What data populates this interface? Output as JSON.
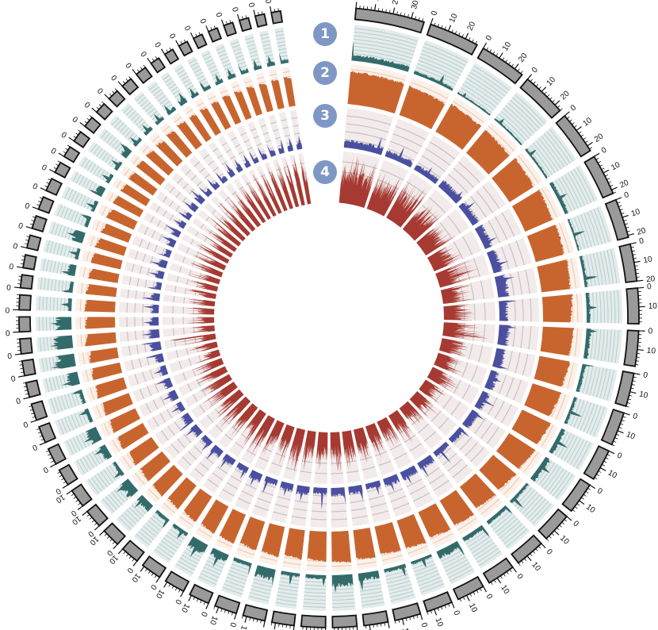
{
  "track_badges": [
    "1",
    "2",
    "3",
    "4"
  ],
  "colors": {
    "ideogram_fill": "#9a9a9a",
    "ideogram_stroke": "#111111",
    "track1_fill": "#336b6a",
    "track1_bg": "#e3ecec",
    "track1_line": "#b9cccc",
    "track2_fill": "#c8652f",
    "track2_bg": "#fcf0e8",
    "track2_line": "#e6c9b8",
    "track3_fill": "#4a4fa0",
    "track3_bg": "#f3ebeb",
    "track3_line": "#c6c3c3",
    "track4_fill": "#a63a32",
    "track4_bg": "#f3ebeb",
    "track4_line": "#c6c3c3",
    "badge": "#7f97c4"
  },
  "chart_data": {
    "type": "circos",
    "tick_label_interval": 10,
    "minor_tick_interval": 2,
    "segment_lengths": [
      37,
      27,
      25,
      24,
      23,
      22,
      21,
      20,
      19,
      19,
      18,
      18,
      17,
      17,
      16,
      16,
      15,
      15,
      14,
      14,
      13,
      13,
      13,
      12,
      12,
      12,
      11,
      11,
      11,
      10,
      10,
      10,
      10,
      9,
      9,
      9,
      9,
      8,
      8,
      8,
      8,
      8,
      7,
      7,
      7,
      7,
      7,
      7,
      6,
      6,
      6,
      6,
      6,
      6,
      6,
      6,
      5,
      5,
      5,
      5,
      5,
      5,
      5,
      5,
      5
    ],
    "tracks": [
      {
        "id": "1",
        "type": "area",
        "level": [
          0.15,
          0.08,
          0.05,
          0.05,
          0.06,
          0.1,
          0.05,
          0.08,
          0.1,
          0.12,
          0.1,
          0.08,
          0.12,
          0.15,
          0.08,
          0.1,
          0.12,
          0.2,
          0.08,
          0.1,
          0.2,
          0.3,
          0.1,
          0.1,
          0.3,
          0.1,
          0.2,
          0.3,
          0.1,
          0.1,
          0.2,
          0.3,
          0.1,
          0.2,
          0.3,
          0.1,
          0.1,
          0.3,
          0.5,
          0.45,
          0.4,
          0.1,
          0.1,
          0.2,
          0.1,
          0.3,
          0.1,
          0.1,
          0.2,
          0.1,
          0.1,
          0.2,
          0.1,
          0.1,
          0.1,
          0.1,
          0.15,
          0.1,
          0.1,
          0.1,
          0.1,
          0.1,
          0.1,
          0.1,
          0.1
        ],
        "peak": [
          0.55,
          0.3,
          0.15,
          0.2,
          0.25,
          0.3,
          0.35,
          0.4,
          0.3,
          0.3,
          0.35,
          0.4,
          0.4,
          0.35,
          0.4,
          0.3,
          0.4,
          0.45,
          0.3,
          0.35,
          0.5,
          0.5,
          0.3,
          0.35,
          0.5,
          0.35,
          0.5,
          0.55,
          0.3,
          0.3,
          0.4,
          0.5,
          0.3,
          0.4,
          0.5,
          0.3,
          0.3,
          0.5,
          0.7,
          0.65,
          0.6,
          0.3,
          0.3,
          0.4,
          0.3,
          0.5,
          0.3,
          0.3,
          0.4,
          0.3,
          0.3,
          0.4,
          0.3,
          0.3,
          0.3,
          0.3,
          0.35,
          0.3,
          0.3,
          0.3,
          0.3,
          0.3,
          0.3,
          0.3,
          0.3
        ]
      },
      {
        "id": "2",
        "type": "area",
        "level": [
          0.78,
          0.72,
          0.75,
          0.7,
          0.72,
          0.75,
          0.74,
          0.72,
          0.7,
          0.73,
          0.72,
          0.7,
          0.74,
          0.72,
          0.7,
          0.68,
          0.72,
          0.7,
          0.73,
          0.7,
          0.72,
          0.74,
          0.7,
          0.68,
          0.72,
          0.7,
          0.74,
          0.72,
          0.7,
          0.7,
          0.72,
          0.7,
          0.68,
          0.72,
          0.7,
          0.7,
          0.72,
          0.7,
          0.68,
          0.72,
          0.7,
          0.72,
          0.7,
          0.7,
          0.72,
          0.7,
          0.68,
          0.7,
          0.72,
          0.7,
          0.7,
          0.72,
          0.7,
          0.68,
          0.7,
          0.72,
          0.7,
          0.7,
          0.7,
          0.72,
          0.7,
          0.7,
          0.68,
          0.7,
          0.7
        ],
        "peak": [
          0.82,
          0.78,
          0.8,
          0.76,
          0.78,
          0.8,
          0.78,
          0.78,
          0.76,
          0.78,
          0.78,
          0.76,
          0.8,
          0.78,
          0.76,
          0.74,
          0.78,
          0.76,
          0.78,
          0.76,
          0.78,
          0.8,
          0.76,
          0.74,
          0.78,
          0.76,
          0.8,
          0.78,
          0.76,
          0.76,
          0.78,
          0.76,
          0.74,
          0.78,
          0.76,
          0.76,
          0.78,
          0.76,
          0.74,
          0.78,
          0.76,
          0.78,
          0.76,
          0.76,
          0.78,
          0.76,
          0.74,
          0.76,
          0.78,
          0.76,
          0.76,
          0.78,
          0.76,
          0.74,
          0.76,
          0.78,
          0.76,
          0.76,
          0.76,
          0.78,
          0.76,
          0.76,
          0.74,
          0.76,
          0.76
        ]
      },
      {
        "id": "3",
        "type": "area",
        "level": [
          0.18,
          0.15,
          0.15,
          0.2,
          0.18,
          0.2,
          0.22,
          0.25,
          0.2,
          0.25,
          0.22,
          0.2,
          0.18,
          0.2,
          0.15,
          0.15,
          0.18,
          0.2,
          0.2,
          0.15,
          0.18,
          0.2,
          0.15,
          0.2,
          0.18,
          0.15,
          0.2,
          0.15,
          0.18,
          0.2,
          0.15,
          0.18,
          0.2,
          0.15,
          0.2,
          0.18,
          0.15,
          0.2,
          0.25,
          0.25,
          0.2,
          0.18,
          0.2,
          0.15,
          0.18,
          0.2,
          0.15,
          0.18,
          0.2,
          0.15,
          0.15,
          0.18,
          0.2,
          0.15,
          0.15,
          0.15,
          0.18,
          0.15,
          0.15,
          0.15,
          0.15,
          0.15,
          0.15,
          0.15,
          0.15
        ],
        "peak": [
          0.45,
          0.4,
          0.3,
          0.35,
          0.4,
          0.4,
          0.45,
          0.5,
          0.45,
          0.45,
          0.4,
          0.35,
          0.45,
          0.4,
          0.35,
          0.5,
          0.45,
          0.4,
          0.4,
          0.35,
          0.4,
          0.45,
          0.55,
          0.4,
          0.35,
          0.45,
          0.4,
          0.35,
          0.4,
          0.45,
          0.35,
          0.4,
          0.45,
          0.35,
          0.4,
          0.4,
          0.35,
          0.45,
          0.5,
          0.45,
          0.4,
          0.4,
          0.45,
          0.35,
          0.4,
          0.45,
          0.35,
          0.4,
          0.45,
          0.35,
          0.35,
          0.4,
          0.45,
          0.35,
          0.35,
          0.35,
          0.4,
          0.35,
          0.35,
          0.35,
          0.35,
          0.35,
          0.35,
          0.35,
          0.35
        ]
      },
      {
        "id": "4",
        "type": "area",
        "level": [
          0.6,
          0.55,
          0.6,
          0.5,
          0.45,
          0.4,
          0.4,
          0.35,
          0.35,
          0.4,
          0.35,
          0.35,
          0.35,
          0.3,
          0.35,
          0.3,
          0.4,
          0.35,
          0.4,
          0.45,
          0.5,
          0.5,
          0.5,
          0.5,
          0.55,
          0.5,
          0.5,
          0.55,
          0.5,
          0.5,
          0.5,
          0.45,
          0.5,
          0.45,
          0.4,
          0.35,
          0.3,
          0.3,
          0.3,
          0.25,
          0.3,
          0.3,
          0.3,
          0.35,
          0.35,
          0.4,
          0.4,
          0.4,
          0.45,
          0.45,
          0.5,
          0.5,
          0.5,
          0.55,
          0.55,
          0.6,
          0.6,
          0.6,
          0.65,
          0.65,
          0.7,
          0.7,
          0.7,
          0.7,
          0.7
        ],
        "peak": [
          0.95,
          0.8,
          0.9,
          0.75,
          0.7,
          0.65,
          0.85,
          0.6,
          0.6,
          0.9,
          0.55,
          0.6,
          0.65,
          0.5,
          0.6,
          0.5,
          0.7,
          0.6,
          0.7,
          0.7,
          0.75,
          0.8,
          0.75,
          0.8,
          0.9,
          0.8,
          0.75,
          0.85,
          0.8,
          0.75,
          0.8,
          0.7,
          0.75,
          0.7,
          0.65,
          0.6,
          0.55,
          0.6,
          0.9,
          0.5,
          0.55,
          0.55,
          0.55,
          0.6,
          0.6,
          0.65,
          0.65,
          0.7,
          0.7,
          0.75,
          0.75,
          0.8,
          0.8,
          0.85,
          0.85,
          0.85,
          0.9,
          0.9,
          0.9,
          0.9,
          0.95,
          0.95,
          0.95,
          0.95,
          0.95
        ]
      }
    ]
  }
}
